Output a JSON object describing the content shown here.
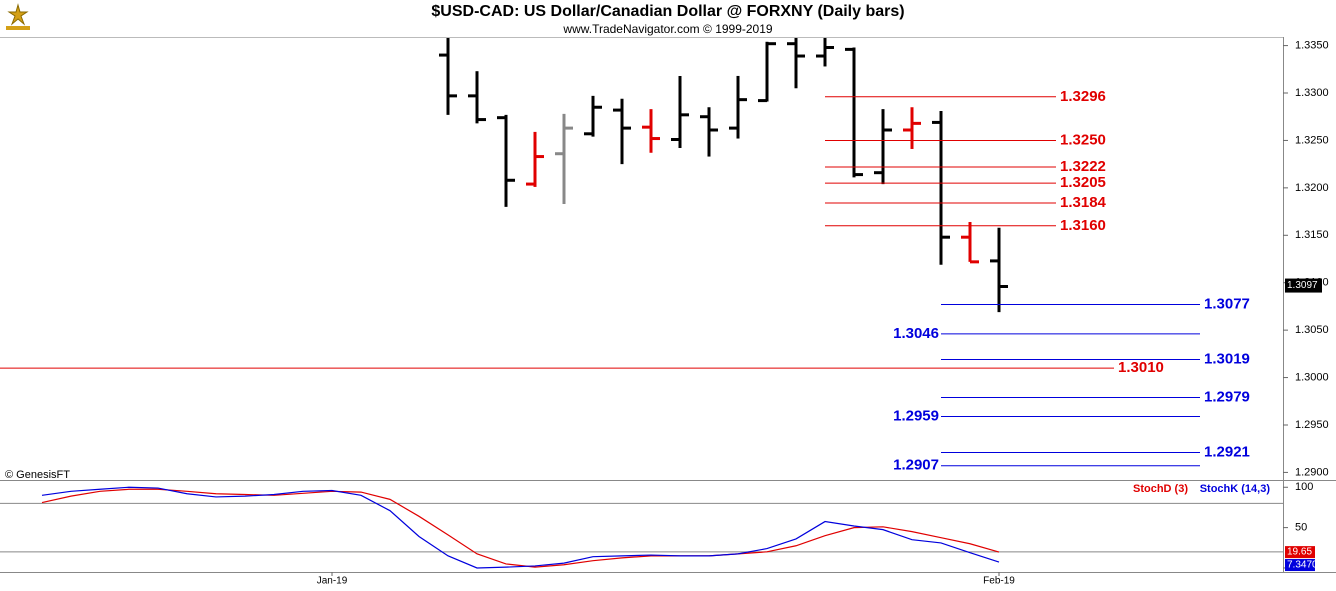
{
  "chart_data": [
    {
      "type": "ohlc",
      "title": "$USD-CAD:  US Dollar/Canadian Dollar @ FORXNY  (Daily bars)",
      "subtitle": "www.TradeNavigator.com © 1999-2019",
      "watermark": "© GenesisFT",
      "ylim": [
        1.2892,
        1.3358
      ],
      "yticks": [
        {
          "value": 1.29,
          "label": "1.2900"
        },
        {
          "value": 1.295,
          "label": "1.2950"
        },
        {
          "value": 1.3,
          "label": "1.3000"
        },
        {
          "value": 1.305,
          "label": "1.3050"
        },
        {
          "value": 1.31,
          "label": "1.3100"
        },
        {
          "value": 1.315,
          "label": "1.3150"
        },
        {
          "value": 1.32,
          "label": "1.3200"
        },
        {
          "value": 1.325,
          "label": "1.3250"
        },
        {
          "value": 1.33,
          "label": "1.3300"
        },
        {
          "value": 1.335,
          "label": "1.3350"
        }
      ],
      "open": [
        null,
        null,
        null,
        null,
        null,
        null,
        null,
        null,
        null,
        null,
        null,
        null,
        null,
        null,
        1.334,
        1.3297,
        1.3274,
        1.3204,
        1.3236,
        1.3257,
        1.3282,
        1.3264,
        1.3251,
        1.3275,
        1.3263,
        1.3292,
        1.3352,
        1.3339,
        1.3346,
        1.3216,
        1.3261,
        1.3269,
        1.3148,
        1.3123
      ],
      "high": [
        null,
        null,
        null,
        null,
        null,
        null,
        null,
        null,
        null,
        null,
        null,
        null,
        null,
        null,
        1.3362,
        1.3323,
        1.3277,
        1.3259,
        1.3278,
        1.3297,
        1.3294,
        1.3283,
        1.3318,
        1.3285,
        1.3318,
        1.3354,
        1.3362,
        1.3362,
        1.3348,
        1.3283,
        1.3285,
        1.3281,
        1.3164,
        1.3158
      ],
      "low": [
        null,
        null,
        null,
        null,
        null,
        null,
        null,
        null,
        null,
        null,
        null,
        null,
        null,
        null,
        1.3277,
        1.3268,
        1.318,
        1.3201,
        1.3183,
        1.3254,
        1.3225,
        1.3237,
        1.3242,
        1.3233,
        1.3252,
        1.3291,
        1.3305,
        1.3328,
        1.3211,
        1.3204,
        1.3241,
        1.3119,
        1.3122,
        1.3069
      ],
      "close": [
        null,
        null,
        null,
        null,
        null,
        null,
        null,
        null,
        null,
        null,
        null,
        null,
        null,
        null,
        1.3297,
        1.3272,
        1.3208,
        1.3233,
        1.3263,
        1.3285,
        1.3263,
        1.3252,
        1.3277,
        1.3261,
        1.3293,
        1.3352,
        1.3339,
        1.3348,
        1.3214,
        1.3261,
        1.3268,
        1.3148,
        1.3122,
        1.3096
      ],
      "colors": [
        null,
        null,
        null,
        null,
        null,
        null,
        null,
        null,
        null,
        null,
        null,
        null,
        null,
        null,
        "#000000",
        "#000000",
        "#000000",
        "#e00000",
        "#888888",
        "#000000",
        "#000000",
        "#e00000",
        "#000000",
        "#000000",
        "#000000",
        "#000000",
        "#000000",
        "#000000",
        "#000000",
        "#000000",
        "#e00000",
        "#000000",
        "#e00000",
        "#000000"
      ],
      "last_price": 1.3097,
      "levels": [
        {
          "value": 1.3296,
          "label": "1.3296",
          "color": "#e00000",
          "side": "right",
          "start": 27
        },
        {
          "value": 1.325,
          "label": "1.3250",
          "color": "#e00000",
          "side": "right",
          "start": 27
        },
        {
          "value": 1.3222,
          "label": "1.3222",
          "color": "#e00000",
          "side": "right",
          "start": 27
        },
        {
          "value": 1.3205,
          "label": "1.3205",
          "color": "#e00000",
          "side": "right",
          "start": 27
        },
        {
          "value": 1.3184,
          "label": "1.3184",
          "color": "#e00000",
          "side": "right",
          "start": 27
        },
        {
          "value": 1.316,
          "label": "1.3160",
          "color": "#e00000",
          "side": "right",
          "start": 27
        },
        {
          "value": 1.301,
          "label": "1.3010",
          "color": "#e00000",
          "side": "right",
          "start": null
        },
        {
          "value": 1.3077,
          "label": "1.3077",
          "color": "#0000dd",
          "side": "right",
          "start": 31
        },
        {
          "value": 1.3046,
          "label": "1.3046",
          "color": "#0000dd",
          "side": "left",
          "start": 31
        },
        {
          "value": 1.3019,
          "label": "1.3019",
          "color": "#0000dd",
          "side": "right",
          "start": 31
        },
        {
          "value": 1.2979,
          "label": "1.2979",
          "color": "#0000dd",
          "side": "right",
          "start": 31
        },
        {
          "value": 1.2959,
          "label": "1.2959",
          "color": "#0000dd",
          "side": "left",
          "start": 31
        },
        {
          "value": 1.2921,
          "label": "1.2921",
          "color": "#0000dd",
          "side": "right",
          "start": 31
        },
        {
          "value": 1.2907,
          "label": "1.2907",
          "color": "#0000dd",
          "side": "left",
          "start": 31
        }
      ]
    },
    {
      "type": "line",
      "categories": [
        null,
        null,
        null,
        null,
        null,
        null,
        null,
        null,
        null,
        null,
        "Jan-19",
        null,
        null,
        null,
        null,
        null,
        null,
        null,
        null,
        null,
        null,
        null,
        null,
        null,
        null,
        null,
        null,
        null,
        null,
        null,
        null,
        null,
        null,
        "Feb-19"
      ],
      "ylim": [
        -5,
        109
      ],
      "yticks": [
        0,
        50,
        100
      ],
      "hlines": [
        20,
        80
      ],
      "series": [
        {
          "name": "StochD (3)",
          "color": "#e00000",
          "last_label": "19.65",
          "values": [
            81,
            89,
            95,
            97.5,
            97.5,
            95,
            92,
            91,
            90,
            92.5,
            95,
            94,
            85,
            64,
            41,
            17.5,
            5,
            1,
            4,
            9,
            12.5,
            15,
            15,
            15,
            17.5,
            20,
            27.5,
            40,
            50,
            51,
            45,
            37.5,
            30,
            19.65
          ]
        },
        {
          "name": "StochK (14,3)",
          "color": "#0000dd",
          "last_label": "7.3470",
          "values": [
            90,
            95,
            97.5,
            100,
            99,
            92,
            88,
            89,
            91,
            95,
            96,
            90,
            71,
            39,
            15,
            0,
            1,
            2.5,
            6,
            14,
            15,
            16,
            15,
            15,
            17.5,
            24,
            36,
            57.5,
            52,
            47.5,
            35,
            31,
            19,
            7.347
          ]
        }
      ]
    }
  ]
}
